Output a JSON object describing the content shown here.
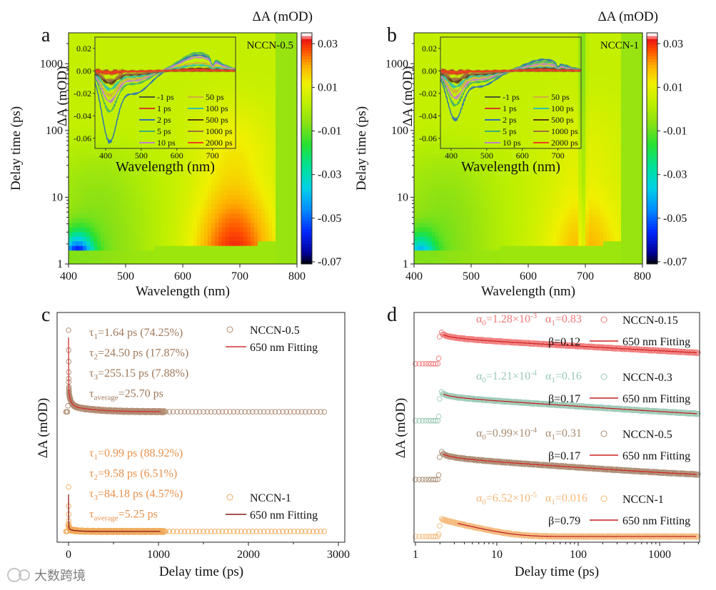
{
  "watermark": "大数跨境",
  "chart_data": [
    {
      "panel": "a",
      "type": "heatmap",
      "sample_label": "NCCN-0.5",
      "xlabel": "Wavelength (nm)",
      "ylabel": "Delay time (ps)",
      "xlim": [
        400,
        800
      ],
      "ylim": [
        1,
        2900
      ],
      "yscale": "log",
      "xticks": [
        "400",
        "500",
        "600",
        "700",
        "800"
      ],
      "yticks": [
        "1",
        "10",
        "100",
        "1000"
      ],
      "colorbar": {
        "title": "ΔA (mOD)",
        "range": [
          -0.071,
          0.035
        ],
        "ticks": [
          "0.03",
          "0.01",
          "-0.01",
          "-0.03",
          "-0.05",
          "-0.07"
        ]
      },
      "features": {
        "negative_band_nm": 415,
        "negative_peak": -0.06,
        "positive_band_nm": 690,
        "positive_peak": 0.026,
        "notch_nm": 0,
        "data_max_nm": 760
      },
      "inset": {
        "type": "line",
        "xlabel": "Wavelength (nm)",
        "ylabel": "ΔA (mOD)",
        "xlim": [
          370,
          765
        ],
        "ylim": [
          -0.069,
          0.03
        ],
        "xticks": [
          "400",
          "500",
          "600",
          "700"
        ],
        "yticks": [
          "0.02",
          "0.00",
          "-0.02",
          "-0.04",
          "-0.06"
        ],
        "series": [
          {
            "name": "-1 ps",
            "color": "#4c5a30",
            "neg": -0.001,
            "pos": 0.0
          },
          {
            "name": "1 ps",
            "color": "#d04020",
            "neg": -0.002,
            "pos": 0.0
          },
          {
            "name": "2 ps",
            "color": "#2a70b8",
            "neg": -0.058,
            "pos": 0.014
          },
          {
            "name": "5 ps",
            "color": "#40b070",
            "neg": -0.033,
            "pos": 0.016
          },
          {
            "name": "10 ps",
            "color": "#c080d0",
            "neg": -0.025,
            "pos": 0.012
          },
          {
            "name": "50 ps",
            "color": "#d0b040",
            "neg": -0.02,
            "pos": 0.007
          },
          {
            "name": "100 ps",
            "color": "#30c0b0",
            "neg": -0.015,
            "pos": 0.005
          },
          {
            "name": "500 ps",
            "color": "#5a3a1a",
            "neg": -0.01,
            "pos": 0.002
          },
          {
            "name": "1000 ps",
            "color": "#a07040",
            "neg": -0.008,
            "pos": 0.001
          },
          {
            "name": "2000 ps",
            "color": "#f04020",
            "neg": -0.001,
            "pos": 0.001
          }
        ]
      }
    },
    {
      "panel": "b",
      "type": "heatmap",
      "sample_label": "NCCN-1",
      "xlabel": "Wavelength (nm)",
      "ylabel": "Delay time (ps)",
      "xlim": [
        400,
        800
      ],
      "ylim": [
        1,
        2900
      ],
      "yscale": "log",
      "xticks": [
        "400",
        "500",
        "600",
        "700",
        "800"
      ],
      "yticks": [
        "1",
        "10",
        "100",
        "1000"
      ],
      "colorbar": {
        "title": "ΔA (mOD)",
        "range": [
          -0.071,
          0.035
        ],
        "ticks": [
          "0.03",
          "0.01",
          "-0.01",
          "-0.03",
          "-0.05",
          "-0.07"
        ]
      },
      "features": {
        "negative_band_nm": 410,
        "negative_peak": -0.04,
        "positive_band_nm": 700,
        "positive_peak": 0.015,
        "notch_nm": 695,
        "data_max_nm": 765
      },
      "inset": {
        "type": "line",
        "xlabel": "Wavelength (nm)",
        "ylabel": "ΔA (mOD)",
        "xlim": [
          370,
          765
        ],
        "ylim": [
          -0.069,
          0.03
        ],
        "xticks": [
          "400",
          "500",
          "600",
          "700"
        ],
        "yticks": [
          "0.02",
          "0.00",
          "-0.02",
          "-0.04",
          "-0.06"
        ],
        "series": [
          {
            "name": "-1 ps",
            "color": "#4c5a30",
            "neg": -0.001,
            "pos": 0.0
          },
          {
            "name": "1 ps",
            "color": "#d04020",
            "neg": -0.002,
            "pos": 0.0
          },
          {
            "name": "2 ps",
            "color": "#2a70b8",
            "neg": -0.04,
            "pos": 0.01
          },
          {
            "name": "5 ps",
            "color": "#40b070",
            "neg": -0.028,
            "pos": 0.008
          },
          {
            "name": "10 ps",
            "color": "#c080d0",
            "neg": -0.022,
            "pos": 0.006
          },
          {
            "name": "50 ps",
            "color": "#d0b040",
            "neg": -0.017,
            "pos": 0.004
          },
          {
            "name": "100 ps",
            "color": "#30c0b0",
            "neg": -0.013,
            "pos": 0.003
          },
          {
            "name": "500 ps",
            "color": "#5a3a1a",
            "neg": -0.009,
            "pos": 0.002
          },
          {
            "name": "1000 ps",
            "color": "#a07040",
            "neg": -0.007,
            "pos": 0.001
          },
          {
            "name": "2000 ps",
            "color": "#f04020",
            "neg": -0.001,
            "pos": 0.001
          }
        ]
      }
    },
    {
      "panel": "c",
      "type": "scatter",
      "xlabel": "Delay time (ps)",
      "ylabel": "ΔA (mOD)",
      "xlim": [
        -130,
        3050
      ],
      "ylim": [
        -0.09,
        1.83
      ],
      "xticks": [
        "0",
        "1000",
        "2000",
        "3000"
      ],
      "series": [
        {
          "name": "NCCN-0.5",
          "fit_label": "650 nm Fitting",
          "color": "#b08a70",
          "text_color": "#a0785a",
          "fit_color": "#d03030",
          "offset": 1.0,
          "amp": 0.68,
          "taus": [
            1.64,
            24.5,
            255.15
          ],
          "weights": [
            74.25,
            17.87,
            7.88
          ],
          "params": [
            {
              "sym": "τ",
              "sub": "1",
              "val": "=1.64 ps (74.25%)"
            },
            {
              "sym": "τ",
              "sub": "2",
              "val": "=24.50 ps (17.87%)"
            },
            {
              "sym": "τ",
              "sub": "3",
              "val": "=255.15 ps (7.88%)"
            },
            {
              "sym": "τ",
              "sub": "average",
              "val": "=25.70 ps"
            }
          ]
        },
        {
          "name": "NCCN-1",
          "fit_label": "650 nm Fitting",
          "color": "#f0a858",
          "text_color": "#e8904a",
          "fit_color": "#8b1a1a",
          "offset": 0.0,
          "amp": 0.37,
          "taus": [
            0.99,
            9.58,
            84.18
          ],
          "weights": [
            88.92,
            6.51,
            4.57
          ],
          "params": [
            {
              "sym": "τ",
              "sub": "1",
              "val": "=0.99 ps (88.92%)"
            },
            {
              "sym": "τ",
              "sub": "2",
              "val": "=9.58 ps (6.51%)"
            },
            {
              "sym": "τ",
              "sub": "3",
              "val": "=84.18 ps (4.57%)"
            },
            {
              "sym": "τ",
              "sub": "average",
              "val": "=5.25 ps"
            }
          ]
        }
      ]
    },
    {
      "panel": "d",
      "type": "scatter",
      "xlabel": "Delay time (ps)",
      "ylabel": "ΔA (mOD)",
      "xscale": "log",
      "xlim": [
        1,
        3100
      ],
      "ylim": [
        -0.1,
        3.93
      ],
      "xticks": [
        "1",
        "10",
        "100",
        "1000"
      ],
      "series": [
        {
          "name": "NCCN-0.15",
          "fit_label": "650 nm Fitting",
          "color": "#f07878",
          "fit_color": "#d02020",
          "offset": 3.03,
          "amp": 0.79,
          "tau": 168,
          "beta_val": 0.12,
          "alpha0": {
            "sym": "α",
            "sub": "0",
            "val": "=1.28×10",
            "exp": "-3"
          },
          "alpha1": {
            "sym": "α",
            "sub": "1",
            "val": "=0.83"
          },
          "beta": "β=0.12"
        },
        {
          "name": "NCCN-0.3",
          "fit_label": "650 nm Fitting",
          "color": "#98c8b4",
          "fit_color": "#c02020",
          "offset": 2.03,
          "amp": 0.64,
          "tau": 158,
          "beta_val": 0.17,
          "alpha0": {
            "sym": "α",
            "sub": "0",
            "val": "=1.21×10",
            "exp": "-4"
          },
          "alpha1": {
            "sym": "α",
            "sub": "1",
            "val": "=0.16"
          },
          "beta": "β=0.17"
        },
        {
          "name": "NCCN-0.5",
          "fit_label": "650 nm Fitting",
          "color": "#a88a70",
          "fit_color": "#d02020",
          "offset": 1.0,
          "amp": 0.65,
          "tau": 50,
          "beta_val": 0.17,
          "alpha0": {
            "sym": "α",
            "sub": "0",
            "val": "=0.99×10",
            "exp": "-4"
          },
          "alpha1": {
            "sym": "α",
            "sub": "1",
            "val": "=0.31"
          },
          "beta": "β=0.17"
        },
        {
          "name": "NCCN-1",
          "fit_label": "650 nm Fitting",
          "color": "#f4b878",
          "fit_color": "#c02020",
          "offset": 0.0,
          "amp": 0.31,
          "tau": 5.8,
          "beta_val": 0.79,
          "alpha0": {
            "sym": "α",
            "sub": "0",
            "val": "=6.52×10",
            "exp": "-5"
          },
          "alpha1": {
            "sym": "α",
            "sub": "1",
            "val": "=0.016"
          },
          "beta": "β=0.79"
        }
      ]
    }
  ],
  "panel_labels": [
    "a",
    "b",
    "c",
    "d"
  ]
}
